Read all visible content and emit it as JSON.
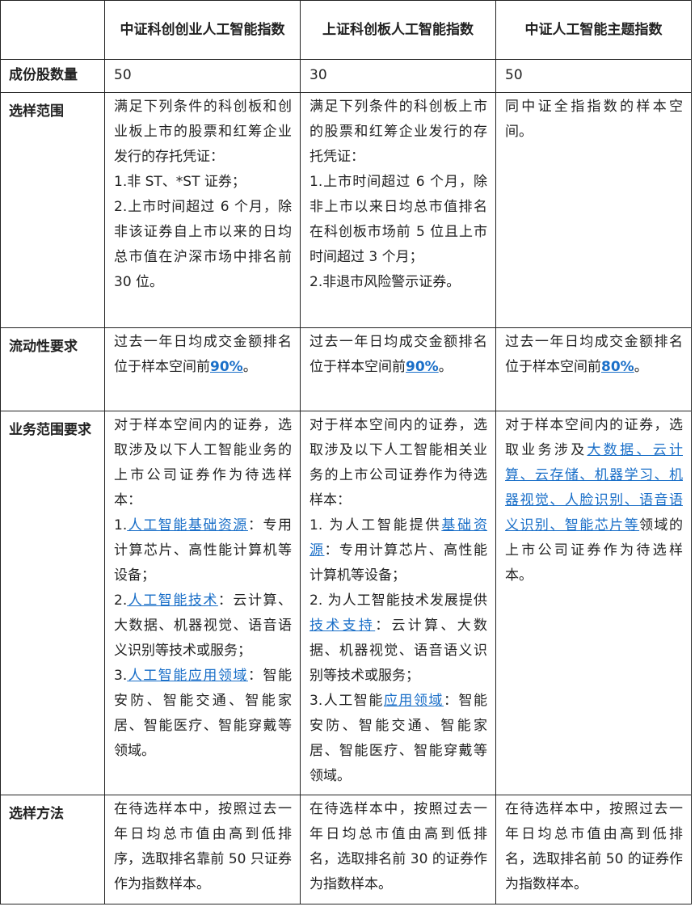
{
  "headers": [
    "",
    "中证科创创业人工智能指数",
    "上证科创板人工智能指数",
    "中证人工智能主题指数"
  ],
  "rows": [
    {
      "label": "成份股数量",
      "cells": [
        [
          {
            "text": "50"
          }
        ],
        [
          {
            "text": "30"
          }
        ],
        [
          {
            "text": "50"
          }
        ]
      ]
    },
    {
      "label": "选样范围",
      "cells": [
        [
          {
            "text": "满足下列条件的科创板和创业板上市的股票和红筹企业发行的存托凭证："
          },
          {
            "br": true
          },
          {
            "text": "1.非 ST、*ST 证券；"
          },
          {
            "br": true
          },
          {
            "text": "2.上市时间超过 6 个月，除非该证券自上市以来的日均总市值在沪深市场中排名前 30 位。"
          }
        ],
        [
          {
            "text": "满足下列条件的科创板上市的股票和红筹企业发行的存托凭证："
          },
          {
            "br": true
          },
          {
            "text": "1.上市时间超过 6 个月，除非上市以来日均总市值排名在科创板市场前 5 位且上市时间超过 3 个月；"
          },
          {
            "br": true
          },
          {
            "text": "2.非退市风险警示证券。"
          }
        ],
        [
          {
            "text": "同中证全指指数的样本空间。"
          }
        ]
      ]
    },
    {
      "label": "流动性要求",
      "cells": [
        [
          {
            "text": "过去一年日均成交金额排名位于样本空间前"
          },
          {
            "text": "90%",
            "link": true,
            "bold": true
          },
          {
            "text": "。"
          }
        ],
        [
          {
            "text": "过去一年日均成交金额排名位于样本空间前"
          },
          {
            "text": "90%",
            "link": true,
            "bold": true
          },
          {
            "text": "。"
          }
        ],
        [
          {
            "text": "过去一年日均成交金额排名位于样本空间前"
          },
          {
            "text": "80%",
            "link": true,
            "bold": true
          },
          {
            "text": "。"
          }
        ]
      ]
    },
    {
      "label": "业务范围要求",
      "cells": [
        [
          {
            "text": "对于样本空间内的证券，选取涉及以下人工智能业务的上市公司证券作为待选样本："
          },
          {
            "br": true
          },
          {
            "text": "1."
          },
          {
            "text": "人工智能基础资源",
            "link": true
          },
          {
            "text": "：专用计算芯片、高性能计算机等设备；"
          },
          {
            "br": true
          },
          {
            "text": "2."
          },
          {
            "text": "人工智能技术",
            "link": true
          },
          {
            "text": "：云计算、大数据、机器视觉、语音语义识别等技术或服务；"
          },
          {
            "br": true
          },
          {
            "text": "3."
          },
          {
            "text": "人工智能应用领域",
            "link": true
          },
          {
            "text": "：智能安防、智能交通、智能家居、智能医疗、智能穿戴等领域。"
          }
        ],
        [
          {
            "text": "对于样本空间内的证券，选取涉及以下人工智能相关业务的上市公司证券作为待选样本："
          },
          {
            "br": true
          },
          {
            "text": "1. 为人工智能提供"
          },
          {
            "text": "基础资源",
            "link": true
          },
          {
            "text": "：专用计算芯片、高性能计算机等设备；"
          },
          {
            "br": true
          },
          {
            "text": "2. 为人工智能技术发展提供"
          },
          {
            "text": "技术支持",
            "link": true
          },
          {
            "text": "：云计算、大数据、机器视觉、语音语义识别等技术或服务；"
          },
          {
            "br": true
          },
          {
            "text": "3.人工智能"
          },
          {
            "text": "应用领域",
            "link": true
          },
          {
            "text": "：智能安防、智能交通、智能家居、智能医疗、智能穿戴等领域。"
          }
        ],
        [
          {
            "text": "对于样本空间内的证券，选取业务涉及"
          },
          {
            "text": "大数据、云计算、云存储、机器学习、机器视觉、人脸识别、语音语义识别、智能芯片等",
            "link": true
          },
          {
            "text": "领域的上市公司证券作为待选样本。"
          }
        ]
      ]
    },
    {
      "label": "选样方法",
      "cells": [
        [
          {
            "text": "在待选样本中，按照过去一年日均总市值由高到低排序，选取排名靠前 50 只证券作为指数样本。"
          }
        ],
        [
          {
            "text": "在待选样本中，按照过去一年日均总市值由高到低排名，选取排名前 30 的证券作为指数样本。"
          }
        ],
        [
          {
            "text": "在待选样本中，按照过去一年日均总市值由高到低排名，选取排名前 50 的证券作为指数样本。"
          }
        ]
      ]
    }
  ],
  "colors": {
    "link": "#1a6fc8",
    "border": "#222222",
    "text": "#222222"
  }
}
